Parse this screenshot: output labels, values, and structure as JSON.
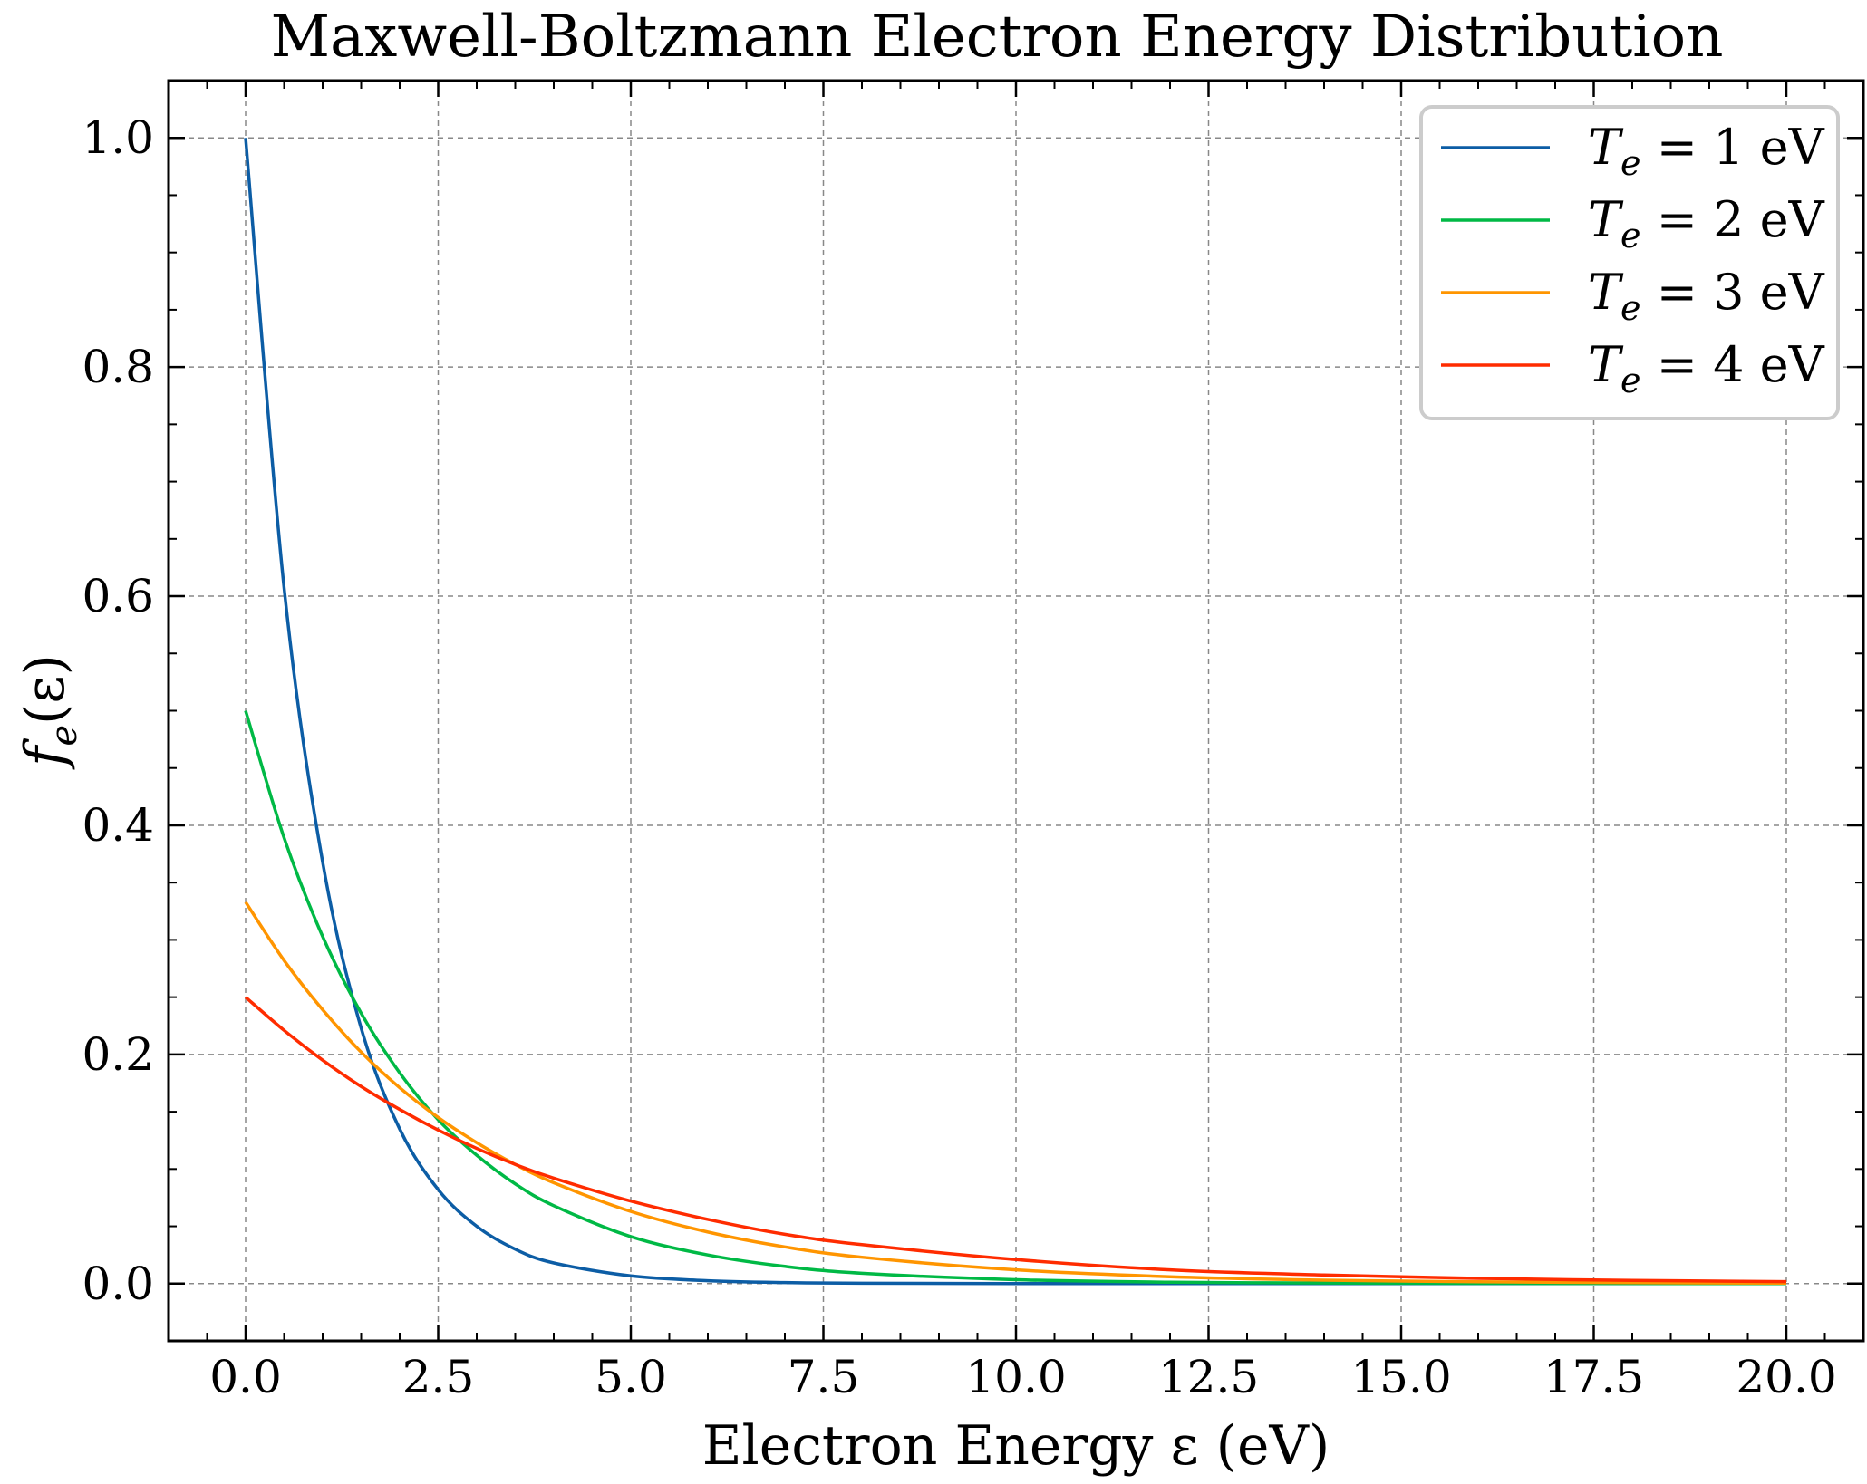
{
  "chart_data": {
    "type": "line",
    "title": "Maxwell-Boltzmann Electron Energy Distribution",
    "xlabel": "Electron Energy ε (eV)",
    "ylabel": "f_e(ε)",
    "xlim": [
      -1.0,
      21.0
    ],
    "ylim": [
      -0.05,
      1.05
    ],
    "x_ticks": [
      "0.0",
      "2.5",
      "5.0",
      "7.5",
      "10.0",
      "12.5",
      "15.0",
      "17.5",
      "20.0"
    ],
    "y_ticks": [
      "0.0",
      "0.2",
      "0.4",
      "0.6",
      "0.8",
      "1.0"
    ],
    "grid": true,
    "legend_position": "top-right",
    "x": [
      0,
      0.5,
      1,
      1.5,
      2,
      2.5,
      3,
      3.5,
      4,
      5,
      6,
      7,
      8,
      10,
      12,
      14,
      16,
      18,
      20
    ],
    "series": [
      {
        "name": "T_e = 1 eV",
        "legend_var": "T",
        "legend_sub": "e",
        "legend_rest": " = 1 eV",
        "color": "#0C5DA5",
        "values": [
          1.0,
          0.607,
          0.368,
          0.223,
          0.135,
          0.082,
          0.05,
          0.03,
          0.018,
          0.0067,
          0.0025,
          0.0009,
          0.0003,
          5e-05,
          0.0,
          0.0,
          0.0,
          0.0,
          0.0
        ]
      },
      {
        "name": "T_e = 2 eV",
        "legend_var": "T",
        "legend_sub": "e",
        "legend_rest": " = 2 eV",
        "color": "#00B945",
        "values": [
          0.5,
          0.389,
          0.303,
          0.236,
          0.184,
          0.143,
          0.112,
          0.087,
          0.068,
          0.041,
          0.025,
          0.015,
          0.009,
          0.0034,
          0.0012,
          0.0005,
          0.0002,
          0.0001,
          0.0
        ]
      },
      {
        "name": "T_e = 3 eV",
        "legend_var": "T",
        "legend_sub": "e",
        "legend_rest": " = 3 eV",
        "color": "#FF9500",
        "values": [
          0.333,
          0.282,
          0.239,
          0.202,
          0.171,
          0.145,
          0.123,
          0.104,
          0.088,
          0.063,
          0.045,
          0.032,
          0.023,
          0.012,
          0.006,
          0.003,
          0.0016,
          0.0008,
          0.0004
        ]
      },
      {
        "name": "T_e = 4 eV",
        "legend_var": "T",
        "legend_sub": "e",
        "legend_rest": " = 4 eV",
        "color": "#FF2C00",
        "values": [
          0.25,
          0.221,
          0.195,
          0.172,
          0.152,
          0.134,
          0.118,
          0.104,
          0.092,
          0.072,
          0.056,
          0.043,
          0.034,
          0.021,
          0.012,
          0.0075,
          0.0046,
          0.0028,
          0.0017
        ]
      }
    ]
  }
}
